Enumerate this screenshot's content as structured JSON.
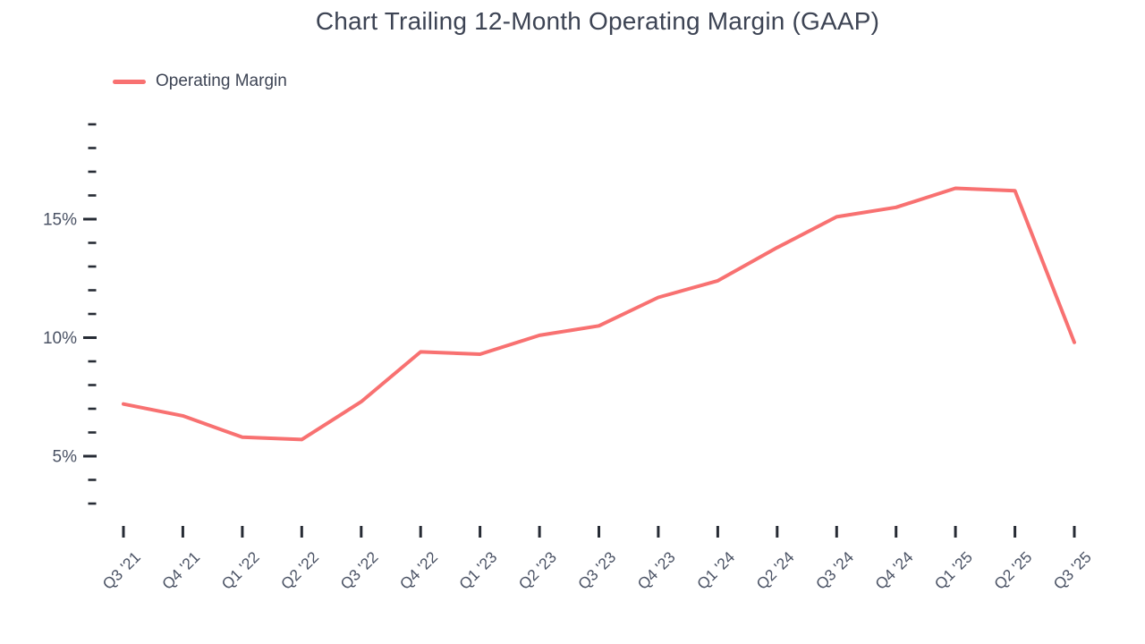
{
  "header": {
    "title": "Chart Trailing 12-Month Operating Margin (GAAP)"
  },
  "legend": {
    "position": "top-left",
    "items": [
      {
        "label": "Operating Margin",
        "color": "#F87171"
      }
    ]
  },
  "chart_data": {
    "type": "line",
    "title": "Chart Trailing 12-Month Operating Margin (GAAP)",
    "categories": [
      "Q3 '21",
      "Q4 '21",
      "Q1 '22",
      "Q2 '22",
      "Q3 '22",
      "Q4 '22",
      "Q1 '23",
      "Q2 '23",
      "Q3 '23",
      "Q4 '23",
      "Q1 '24",
      "Q2 '24",
      "Q3 '24",
      "Q4 '24",
      "Q1 '25",
      "Q2 '25",
      "Q3 '25"
    ],
    "series": [
      {
        "name": "Operating Margin",
        "color": "#F87171",
        "values": [
          7.2,
          6.7,
          5.8,
          5.7,
          7.3,
          9.4,
          9.3,
          10.1,
          10.5,
          11.7,
          12.4,
          13.8,
          15.1,
          15.5,
          16.3,
          16.2,
          9.8
        ]
      }
    ],
    "xlabel": "",
    "ylabel": "",
    "y_axis": {
      "unit": "%",
      "range": [
        3,
        19
      ],
      "minor_tick_step": 1,
      "major_ticks": [
        5,
        10,
        15
      ],
      "major_tick_labels": [
        "5%",
        "10%",
        "15%"
      ]
    },
    "x_axis": {
      "label_rotation_deg": -45
    },
    "grid": false,
    "legend_position": "top-left"
  },
  "colors": {
    "series_line": "#F87171",
    "title_text": "#3D4454",
    "axis_label_text": "#4A5264",
    "tick_mark": "#262B34",
    "background": "#FFFFFF"
  }
}
